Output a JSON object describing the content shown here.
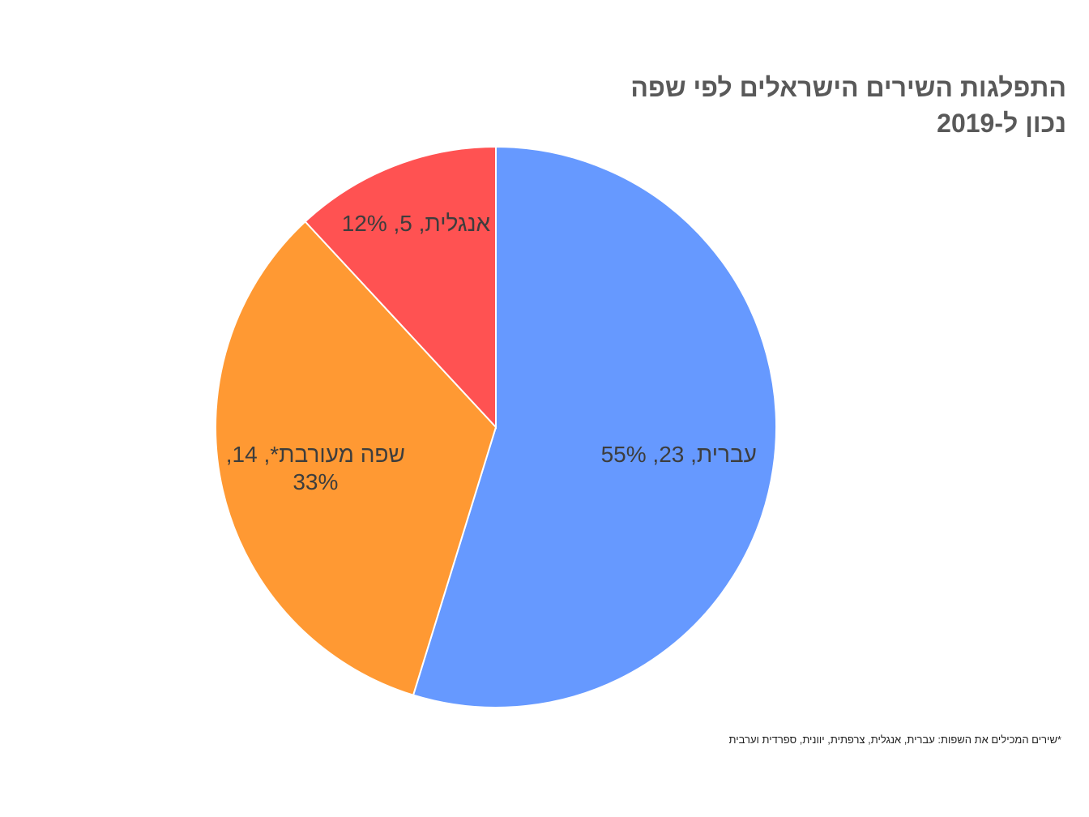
{
  "chart_data": {
    "type": "pie",
    "title": "התפלגות השירים הישראלים לפי שפה",
    "subtitle": "נכון ל-2019",
    "values": [
      23,
      14,
      5
    ],
    "value_labels": [
      "עברית, 23, 55%",
      "שפה מעורבת*, 14, 33%",
      "אנגלית, 5, 12%"
    ],
    "colors": [
      "#6699ff",
      "#ff9933",
      "#ff5252"
    ],
    "footnote": "*שירים המכילים את השפות: עברית, אנגלית, צרפתית, יוונית, ספרדית וערבית"
  }
}
